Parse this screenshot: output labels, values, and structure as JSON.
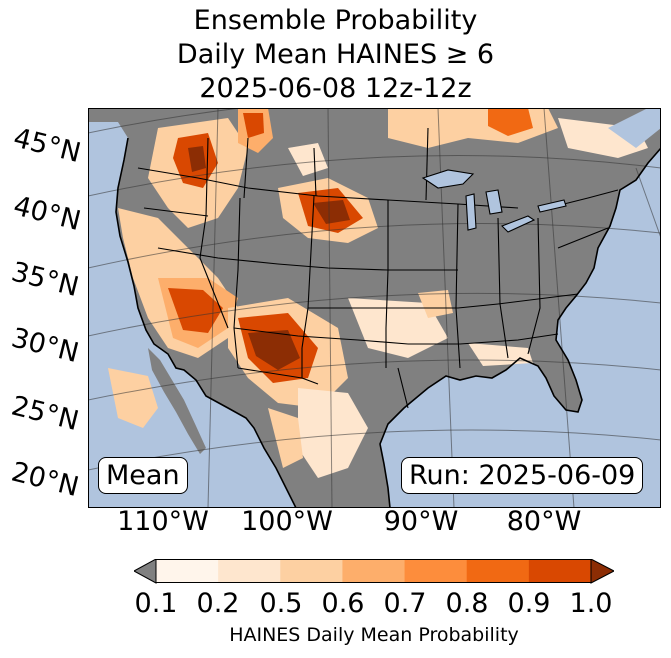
{
  "title": {
    "line1": "Ensemble Probability",
    "line2": "Daily Mean HAINES ≥ 6",
    "line3": "2025-06-08 12z-12z"
  },
  "map": {
    "ocean_color": "#b0c4de",
    "land_no_data_color": "#808080",
    "lat_labels": [
      "45°N",
      "40°N",
      "35°N",
      "30°N",
      "25°N",
      "20°N"
    ],
    "lon_labels": [
      "110°W",
      "100°W",
      "90°W",
      "80°W"
    ],
    "mean_label": "Mean",
    "run_label": "Run: 2025-06-09"
  },
  "colorbar": {
    "ticks": [
      "0.1",
      "0.2",
      "0.5",
      "0.6",
      "0.7",
      "0.8",
      "0.9",
      "1.0"
    ],
    "colors": [
      "#fff5eb",
      "#fee6ce",
      "#fdd0a2",
      "#fdae6b",
      "#fd8d3c",
      "#f16913",
      "#d94801",
      "#8c2d04"
    ],
    "under_color": "#808080",
    "label": "HAINES Daily Mean Probability"
  }
}
